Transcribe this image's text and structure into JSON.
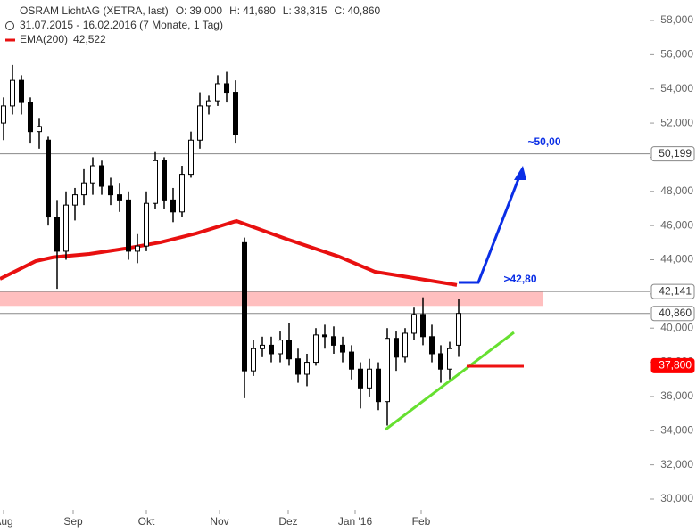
{
  "chart_data": {
    "type": "candlestick",
    "title": "OSRAM LichtAG (XETRA, last)",
    "quote": [
      {
        "label": "O:",
        "value": "39,000"
      },
      {
        "label": "H:",
        "value": "41,680"
      },
      {
        "label": "L:",
        "value": "38,315"
      },
      {
        "label": "C:",
        "value": "40,860"
      }
    ],
    "subtitle": "31.07.2015 - 16.02.2016 (7 Monate, 1 Tag)",
    "color": "#000000",
    "x": [
      0,
      1,
      2,
      3,
      4,
      5,
      6,
      7,
      8,
      9,
      10,
      11,
      12,
      13,
      14,
      15,
      16,
      17,
      18,
      19,
      20,
      21,
      22,
      23,
      24,
      25,
      26,
      27,
      28,
      29,
      30,
      31,
      32,
      33,
      34,
      35,
      36,
      37,
      38,
      39,
      40,
      41,
      42,
      43,
      44,
      45,
      46,
      47,
      48,
      49,
      50,
      51
    ],
    "open": [
      52000,
      53000,
      54500,
      53200,
      51500,
      51000,
      46500,
      44500,
      47200,
      47800,
      48500,
      49500,
      48300,
      47800,
      47500,
      44500,
      44800,
      47300,
      49800,
      47500,
      46800,
      49000,
      51000,
      53000,
      53300,
      54300,
      53800,
      45000,
      37500,
      38800,
      39000,
      38500,
      39300,
      38200,
      37300,
      38000,
      39600,
      39500,
      39000,
      38600,
      37600,
      36500,
      37600,
      35700,
      39400,
      38300,
      39700,
      40800,
      39500,
      38500,
      37600,
      39000
    ],
    "high": [
      53500,
      55400,
      54800,
      53500,
      52300,
      51200,
      47500,
      48000,
      48200,
      49300,
      50000,
      49800,
      48800,
      48500,
      48000,
      45500,
      48000,
      50300,
      50000,
      48200,
      49500,
      51500,
      53800,
      53600,
      54800,
      55000,
      54500,
      45300,
      39300,
      39500,
      39500,
      39800,
      40300,
      38800,
      38500,
      40000,
      40200,
      40100,
      39500,
      39000,
      38000,
      38200,
      38000,
      40000,
      39800,
      40000,
      41200,
      41800,
      40200,
      39000,
      39200,
      41680
    ],
    "low": [
      51000,
      52500,
      52500,
      50800,
      50500,
      46000,
      42300,
      44000,
      46300,
      47200,
      47800,
      47800,
      47200,
      46800,
      44000,
      43800,
      44500,
      47000,
      47000,
      46200,
      46500,
      48800,
      50500,
      52500,
      53000,
      53200,
      50800,
      35900,
      37200,
      38300,
      38000,
      38000,
      37800,
      36800,
      36600,
      37800,
      38800,
      38500,
      38000,
      37000,
      35300,
      36000,
      35200,
      34300,
      37500,
      38000,
      39300,
      39000,
      38000,
      36800,
      37000,
      38315
    ],
    "close": [
      53000,
      54500,
      53200,
      51500,
      51800,
      46500,
      44500,
      47200,
      47800,
      48500,
      49500,
      48300,
      47800,
      47500,
      44500,
      44800,
      47300,
      49800,
      47500,
      46800,
      49000,
      51000,
      53000,
      53300,
      54300,
      53800,
      51300,
      37500,
      38800,
      39000,
      38500,
      39300,
      38200,
      37300,
      38000,
      39600,
      39500,
      39000,
      38600,
      37600,
      36500,
      37600,
      35700,
      39400,
      38300,
      39700,
      40800,
      39500,
      38500,
      37600,
      38800,
      40860
    ],
    "overlay": {
      "name": "EMA(200)",
      "value_label": "42,522",
      "color": "#e81010",
      "x": [
        -0.4,
        3.6,
        5.6,
        9.6,
        13.6,
        17.6,
        21.6,
        26.1,
        31.6,
        37.6,
        41.6,
        46.6,
        50.8
      ],
      "values": [
        42880,
        43920,
        44150,
        44340,
        44650,
        45020,
        45540,
        46270,
        45230,
        44180,
        43300,
        42880,
        42522
      ]
    },
    "levels": [
      {
        "value": 50199,
        "label": "50,199",
        "color": "#888888"
      },
      {
        "value": 42141,
        "label": "42,141",
        "color": "#888888"
      },
      {
        "value": 40860,
        "label": "40,860",
        "color": "#888888"
      },
      {
        "value": 37800,
        "label": "37,800",
        "color": "#ff0000"
      }
    ],
    "zone": [
      41300,
      42141
    ],
    "annotations": [
      "~50,00",
      ">42,80"
    ],
    "xlim": [
      -0.4,
      71.6
    ],
    "xticks": [
      {
        "value": 0,
        "label": "Aug"
      },
      {
        "value": 7.8,
        "label": "Sep"
      },
      {
        "value": 16,
        "label": "Okt"
      },
      {
        "value": 24.2,
        "label": "Nov"
      },
      {
        "value": 31.9,
        "label": "Dez"
      },
      {
        "value": 39.4,
        "label": "Jan '16"
      },
      {
        "value": 46.8,
        "label": "Feb"
      }
    ],
    "ylim": [
      28070,
      59200
    ],
    "yticks": [
      {
        "value": 30000,
        "label": "30,000"
      },
      {
        "value": 32000,
        "label": "32,000"
      },
      {
        "value": 34000,
        "label": "34,000"
      },
      {
        "value": 36000,
        "label": "36,000"
      },
      {
        "value": 38000,
        "label": "38,000"
      },
      {
        "value": 40000,
        "label": "40,000"
      },
      {
        "value": 42000,
        "label": "42,000"
      },
      {
        "value": 44000,
        "label": "44,000"
      },
      {
        "value": 46000,
        "label": "46,000"
      },
      {
        "value": 48000,
        "label": "48,000"
      },
      {
        "value": 50000,
        "label": "50,000"
      },
      {
        "value": 52000,
        "label": "52,000"
      },
      {
        "value": 54000,
        "label": "54,000"
      },
      {
        "value": 56000,
        "label": "56,000"
      },
      {
        "value": 58000,
        "label": "58,000"
      }
    ]
  }
}
